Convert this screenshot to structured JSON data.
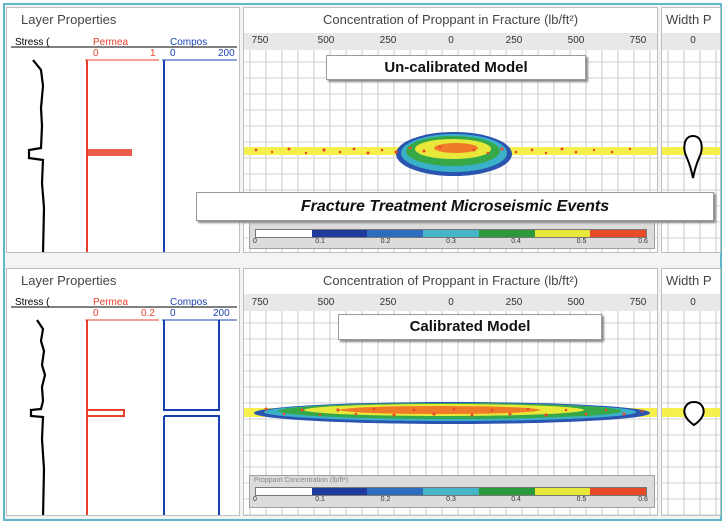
{
  "top": {
    "layer_title": "Layer Properties",
    "col_stress": "Stress (",
    "col_perm": "Permea",
    "perm_min": "0",
    "perm_max": "1",
    "col_comp": "Compos",
    "comp_min": "0",
    "comp_max": "200",
    "conc_title": "Concentration of Proppant in Fracture (lb/ft²)",
    "axis_ticks": [
      "750",
      "500",
      "250",
      "0",
      "250",
      "500",
      "750"
    ],
    "width_title": "Width P",
    "width_tick": "0",
    "callout": "Un-calibrated Model",
    "legend_ticks": [
      "0",
      "0.1",
      "0.2",
      "0.3",
      "0.4",
      "0.5",
      "0.6"
    ]
  },
  "middle_callout": "Fracture Treatment Microseismic Events",
  "bottom": {
    "layer_title": "Layer Properties",
    "col_stress": "Stress (",
    "col_perm": "Permea",
    "perm_min": "0",
    "perm_max": "0.2",
    "col_comp": "Compos",
    "comp_min": "0",
    "comp_max": "200",
    "conc_title": "Concentration of Proppant in Fracture (lb/ft²)",
    "axis_ticks": [
      "750",
      "500",
      "250",
      "0",
      "250",
      "500",
      "750"
    ],
    "width_title": "Width P",
    "width_tick": "0",
    "callout": "Calibrated Model",
    "legend_title": "Proppant Concentration (lb/ft²)",
    "legend_ticks": [
      "0",
      "0.1",
      "0.2",
      "0.3",
      "0.4",
      "0.5",
      "0.6"
    ]
  },
  "colors": {
    "stress": "#000000",
    "permeability": "#e8402a",
    "composition": "#1a3fb0",
    "frame": "#5fb8c9",
    "legend": [
      "#ffffff",
      "#1f3b9c",
      "#2e6cc0",
      "#47b5c8",
      "#2a9a3a",
      "#e8e83a",
      "#e84a2a"
    ]
  }
}
